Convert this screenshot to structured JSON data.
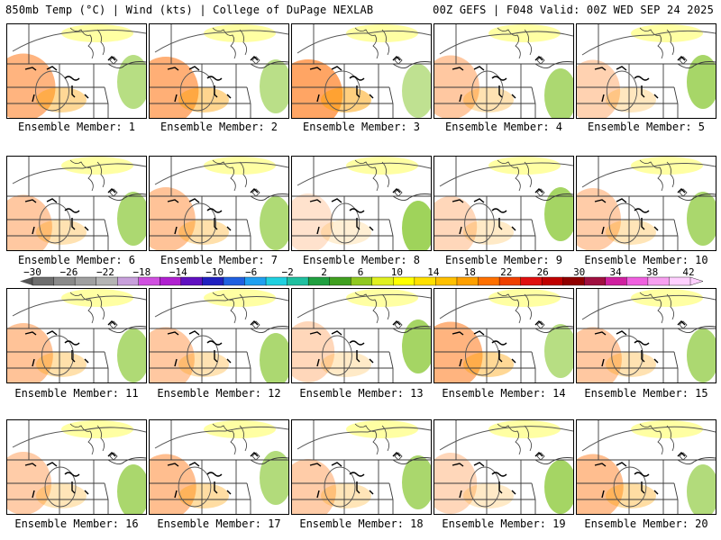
{
  "header": {
    "left": "850mb Temp (°C) | Wind (kts) | College of DuPage NEXLAB",
    "right": "00Z GEFS | F048 Valid: 00Z WED SEP 24 2025"
  },
  "members": [
    {
      "label": "Ensemble Member: 1",
      "warmth": 0.75
    },
    {
      "label": "Ensemble Member: 2",
      "warmth": 0.8
    },
    {
      "label": "Ensemble Member: 3",
      "warmth": 0.9
    },
    {
      "label": "Ensemble Member: 4",
      "warmth": 0.55
    },
    {
      "label": "Ensemble Member: 5",
      "warmth": 0.45
    },
    {
      "label": "Ensemble Member: 6",
      "warmth": 0.55
    },
    {
      "label": "Ensemble Member: 7",
      "warmth": 0.6
    },
    {
      "label": "Ensemble Member: 8",
      "warmth": 0.3
    },
    {
      "label": "Ensemble Member: 9",
      "warmth": 0.4
    },
    {
      "label": "Ensemble Member: 10",
      "warmth": 0.5
    },
    {
      "label": "Ensemble Member: 11",
      "warmth": 0.6
    },
    {
      "label": "Ensemble Member: 12",
      "warmth": 0.55
    },
    {
      "label": "Ensemble Member: 13",
      "warmth": 0.4
    },
    {
      "label": "Ensemble Member: 14",
      "warmth": 0.75
    },
    {
      "label": "Ensemble Member: 15",
      "warmth": 0.55
    },
    {
      "label": "Ensemble Member: 16",
      "warmth": 0.5
    },
    {
      "label": "Ensemble Member: 17",
      "warmth": 0.65
    },
    {
      "label": "Ensemble Member: 18",
      "warmth": 0.5
    },
    {
      "label": "Ensemble Member: 19",
      "warmth": 0.4
    },
    {
      "label": "Ensemble Member: 20",
      "warmth": 0.65
    }
  ],
  "color_scale": {
    "labels": [
      "−30",
      "−26",
      "−22",
      "−18",
      "−14",
      "−10",
      "−6",
      "−2",
      "2",
      "6",
      "10",
      "14",
      "18",
      "22",
      "26",
      "30",
      "34",
      "38",
      "42"
    ],
    "colors": [
      "#6e6e6e",
      "#8a8a8a",
      "#a0a0a0",
      "#b4b4b4",
      "#c8a0dc",
      "#d050e0",
      "#b020d0",
      "#6010c0",
      "#2020c0",
      "#2060e0",
      "#20a0f0",
      "#20d0e0",
      "#20c0a0",
      "#20a040",
      "#40a020",
      "#90c820",
      "#e0f020",
      "#ffff00",
      "#ffe000",
      "#ffc000",
      "#ffa000",
      "#ff7000",
      "#f04000",
      "#e01010",
      "#c00000",
      "#900000",
      "#a01040",
      "#d020a0",
      "#f060e0",
      "#f8a0f0",
      "#ffd0ff"
    ]
  }
}
